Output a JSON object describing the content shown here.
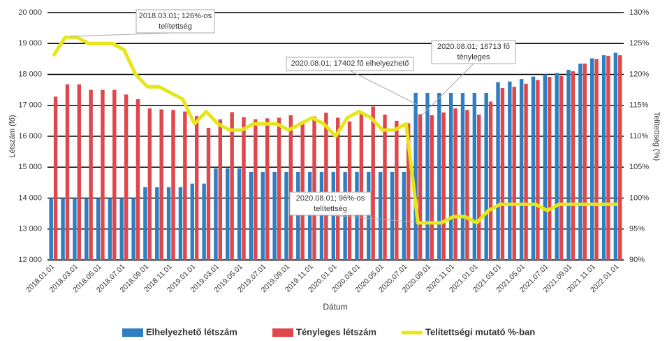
{
  "chart_data": {
    "type": "bar-line",
    "x_label": "Dátum",
    "y_label": "Létszám (fő)",
    "y2_label": "Telítettség (%)",
    "categories": [
      "2018.01.01",
      null,
      "2018.03.01",
      null,
      "2018.05.01",
      null,
      "2018.07.01",
      null,
      "2018.09.01",
      null,
      "2018.11.01",
      null,
      "2019.01.01",
      null,
      "2019.03.01",
      null,
      "2019.05.01",
      null,
      "2019.07.01",
      null,
      "2019.09.01",
      null,
      "2019.11.01",
      null,
      "2020.01.01",
      null,
      "2020.03.01",
      null,
      "2020.05.01",
      null,
      "2020.07.01",
      null,
      "2020.09.01",
      null,
      "2020.11.01",
      null,
      "2021.01.01",
      null,
      "2021.03.01",
      null,
      "2021.05.01",
      null,
      "2021.07.01",
      null,
      "2021.09.01",
      null,
      "2021.11.01",
      null,
      "2022.01.01"
    ],
    "series": [
      {
        "name": "Elhelyezhető létszám",
        "color": "#2e7fc1",
        "values": [
          14000,
          14000,
          14000,
          14000,
          14000,
          14000,
          14000,
          14000,
          14350,
          14350,
          14350,
          14350,
          14470,
          14470,
          14960,
          14960,
          14960,
          14850,
          14850,
          14850,
          14850,
          14850,
          14850,
          14850,
          14850,
          14850,
          14850,
          14850,
          14850,
          14850,
          14850,
          17402,
          17402,
          17402,
          17402,
          17402,
          17402,
          17402,
          17750,
          17770,
          17850,
          17930,
          18000,
          18050,
          18150,
          18350,
          18520,
          18620,
          18700
        ]
      },
      {
        "name": "Tényleges létszám",
        "color": "#e0474c",
        "values": [
          17280,
          17680,
          17680,
          17500,
          17500,
          17500,
          17350,
          17200,
          16900,
          16870,
          16850,
          16800,
          16650,
          16270,
          16550,
          16780,
          16620,
          16550,
          16580,
          16600,
          16680,
          16480,
          16640,
          16760,
          16600,
          16480,
          16800,
          16960,
          16700,
          16500,
          16420,
          16713,
          16680,
          16770,
          16900,
          16850,
          16700,
          17120,
          17560,
          17600,
          17700,
          17820,
          17920,
          17950,
          18100,
          18350,
          18500,
          18600,
          18620
        ]
      },
      {
        "name": "Telítettségi mutató %-ban",
        "color": "#e6e619",
        "axis": "y2",
        "values": [
          123,
          126,
          126,
          125,
          125,
          125,
          124,
          120,
          118,
          118,
          117,
          116,
          112,
          114,
          112,
          111,
          111,
          112,
          112,
          112,
          111,
          112,
          113,
          112,
          110,
          113,
          114,
          113,
          111,
          111,
          112,
          96,
          96,
          96,
          97,
          97,
          96,
          98,
          99,
          99,
          99,
          99,
          98,
          99,
          99,
          99,
          99,
          99,
          99
        ]
      }
    ],
    "ylim": [
      12000,
      20000
    ],
    "yticks": [
      {
        "value": 12000,
        "label": "12 000"
      },
      {
        "value": 13000,
        "label": "13 000"
      },
      {
        "value": 14000,
        "label": "14 000"
      },
      {
        "value": 15000,
        "label": "15 000"
      },
      {
        "value": 16000,
        "label": "16 000"
      },
      {
        "value": 17000,
        "label": "17 000"
      },
      {
        "value": 18000,
        "label": "18 000"
      },
      {
        "value": 19000,
        "label": "19 000"
      },
      {
        "value": 20000,
        "label": "20 000"
      }
    ],
    "y2lim": [
      90,
      130
    ],
    "y2ticks": [
      {
        "value": 90,
        "label": "90%"
      },
      {
        "value": 95,
        "label": "95%"
      },
      {
        "value": 100,
        "label": "100%"
      },
      {
        "value": 105,
        "label": "105%"
      },
      {
        "value": 110,
        "label": "110%"
      },
      {
        "value": 115,
        "label": "115%"
      },
      {
        "value": 120,
        "label": "120%"
      },
      {
        "value": 125,
        "label": "125%"
      },
      {
        "value": 130,
        "label": "130%"
      }
    ],
    "grid": true,
    "legend": "bottom",
    "annotations": [
      {
        "text": [
          "2018.03.01; 126%-os",
          "telítettség"
        ]
      },
      {
        "text": [
          "2020.08.01; 17402 fő elhelyezhető"
        ]
      },
      {
        "text": [
          "2020.08.01; 16713 fő",
          "tényleges"
        ]
      },
      {
        "text": [
          "2020.08.01; 96%-os",
          "telítettség"
        ]
      }
    ]
  }
}
